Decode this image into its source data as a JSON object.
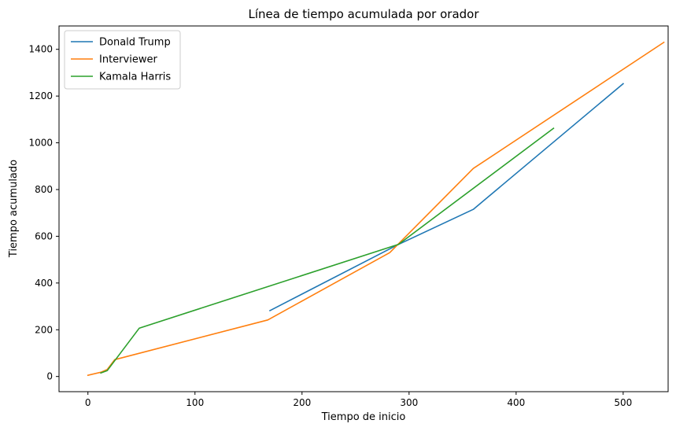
{
  "chart_data": {
    "type": "line",
    "title": "Línea de tiempo acumulada por orador",
    "xlabel": "Tiempo de inicio",
    "ylabel": "Tiempo acumulado",
    "xlim": [
      -27,
      542
    ],
    "ylim": [
      -65,
      1500
    ],
    "xticks": [
      0,
      100,
      200,
      300,
      400,
      500
    ],
    "yticks": [
      0,
      200,
      400,
      600,
      800,
      1000,
      1200,
      1400
    ],
    "grid": false,
    "legend_position": "top-left",
    "series": [
      {
        "name": "Donald Trump",
        "color": "#1f77b4",
        "x": [
          170,
          290,
          360,
          500
        ],
        "y": [
          282,
          565,
          715,
          1253
        ]
      },
      {
        "name": "Interviewer",
        "color": "#ff7f0e",
        "x": [
          0,
          12,
          18,
          25,
          168,
          282,
          360,
          538
        ],
        "y": [
          5,
          18,
          30,
          72,
          242,
          530,
          890,
          1430
        ]
      },
      {
        "name": "Kamala Harris",
        "color": "#2ca02c",
        "x": [
          12,
          18,
          48,
          290,
          435
        ],
        "y": [
          15,
          25,
          207,
          565,
          1062
        ]
      }
    ]
  }
}
